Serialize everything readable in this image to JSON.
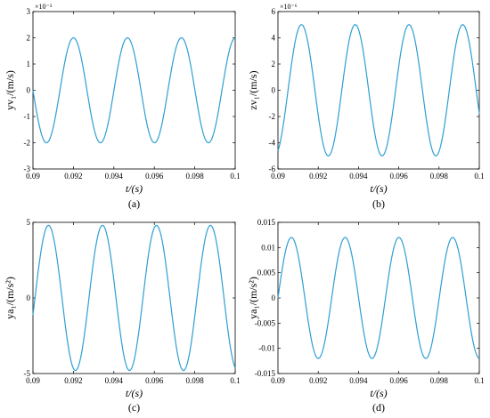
{
  "chart_data": [
    {
      "type": "line",
      "caption": "(a)",
      "xlabel": "t/(s)",
      "ylabel": "yv₁/(m/s)",
      "exponent": "×10⁻³",
      "xlim": [
        0.09,
        0.1
      ],
      "ylim": [
        -3,
        3
      ],
      "xticks": [
        "0.09",
        "0.092",
        "0.094",
        "0.096",
        "0.098",
        "0.1"
      ],
      "yticks": [
        "-3",
        "-2",
        "-1",
        "0",
        "1",
        "2",
        "3"
      ],
      "series": [
        {
          "amplitude": 2,
          "period": 0.00267,
          "phase_zero": 0.09,
          "direction": "down",
          "color": "#2e9fd3"
        }
      ]
    },
    {
      "type": "line",
      "caption": "(b)",
      "xlabel": "t/(s)",
      "ylabel": "zv₁/(m/s)",
      "exponent": "×10⁻⁶",
      "xlim": [
        0.09,
        0.1
      ],
      "ylim": [
        -6,
        6
      ],
      "xticks": [
        "0.09",
        "0.092",
        "0.094",
        "0.096",
        "0.098",
        "0.1"
      ],
      "yticks": [
        "-6",
        "-4",
        "-2",
        "0",
        "2",
        "4",
        "6"
      ],
      "series": [
        {
          "amplitude": 5,
          "period": 0.00267,
          "phase_zero": 0.0905,
          "direction": "up",
          "color": "#2e9fd3"
        }
      ]
    },
    {
      "type": "line",
      "caption": "(c)",
      "xlabel": "t/(s)",
      "ylabel": "ya₁/(m/s²)",
      "exponent": "",
      "xlim": [
        0.09,
        0.1
      ],
      "ylim": [
        -5,
        5
      ],
      "xticks": [
        "0.09",
        "0.092",
        "0.094",
        "0.096",
        "0.098",
        "0.1"
      ],
      "yticks": [
        "-5",
        "0",
        "5"
      ],
      "series": [
        {
          "amplitude": 4.8,
          "period": 0.00267,
          "phase_zero": 0.0901,
          "direction": "up",
          "color": "#2e9fd3"
        }
      ]
    },
    {
      "type": "line",
      "caption": "(d)",
      "xlabel": "t/(s)",
      "ylabel": "ya₁/(m/s²)",
      "exponent": "",
      "xlim": [
        0.09,
        0.1
      ],
      "ylim": [
        -0.015,
        0.015
      ],
      "xticks": [
        "0.09",
        "0.092",
        "0.094",
        "0.096",
        "0.098",
        "0.1"
      ],
      "yticks": [
        "-0.015",
        "-0.01",
        "-0.005",
        "0",
        "0.005",
        "0.01",
        "0.015"
      ],
      "series": [
        {
          "amplitude": 0.012,
          "period": 0.00267,
          "phase_zero": 0.09,
          "direction": "up",
          "color": "#2e9fd3"
        }
      ]
    }
  ]
}
